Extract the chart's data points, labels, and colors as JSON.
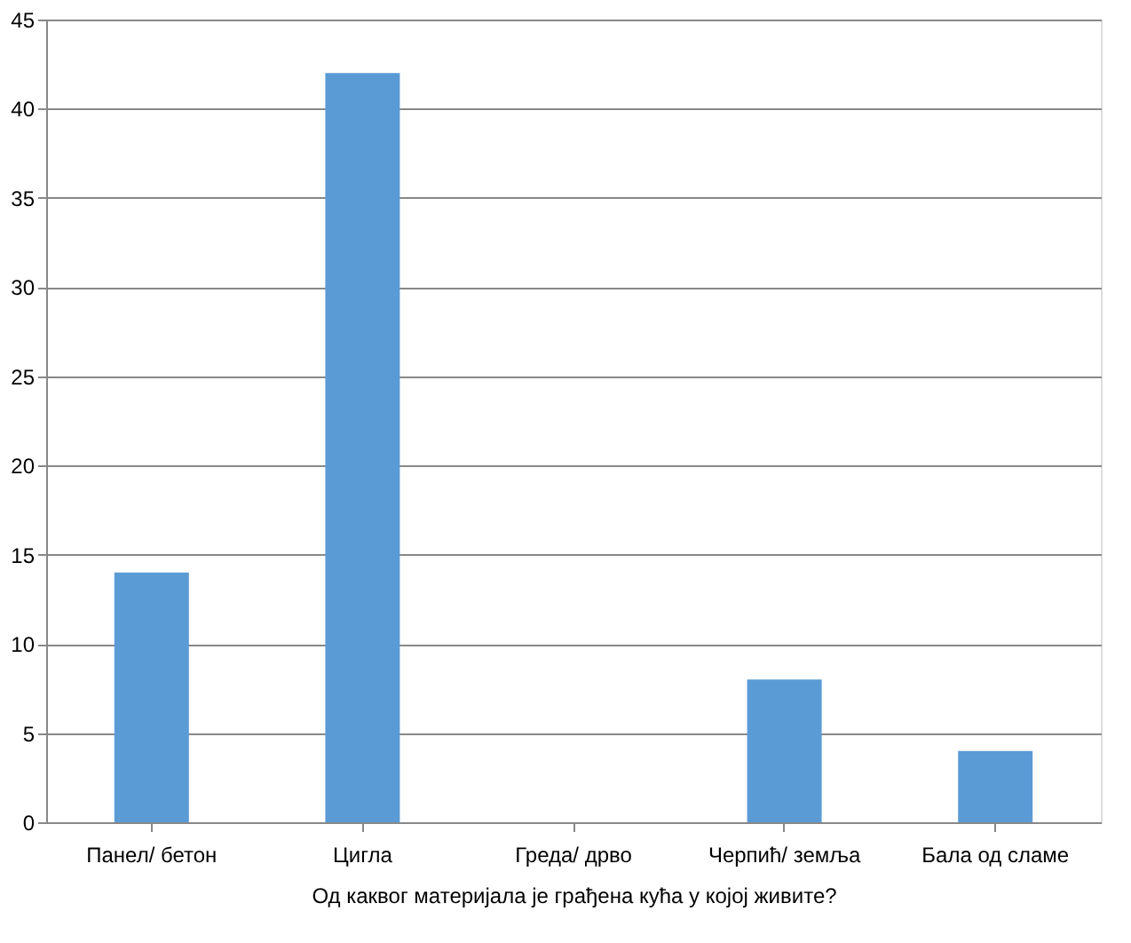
{
  "chart_data": {
    "type": "bar",
    "xlabel": "Од каквог материјала је грађена кућа у којој живите?",
    "categories": [
      "Панел/ бетон",
      "Цигла",
      "Греда/ дрво",
      "Черпић/ земља",
      "Бала од сламе"
    ],
    "values": [
      14,
      42,
      0,
      8,
      4
    ],
    "color": "#5b9bd5",
    "ylim": [
      0,
      45
    ],
    "yticks": [
      0,
      5,
      10,
      15,
      20,
      25,
      30,
      35,
      40,
      45
    ],
    "grid": "y"
  }
}
